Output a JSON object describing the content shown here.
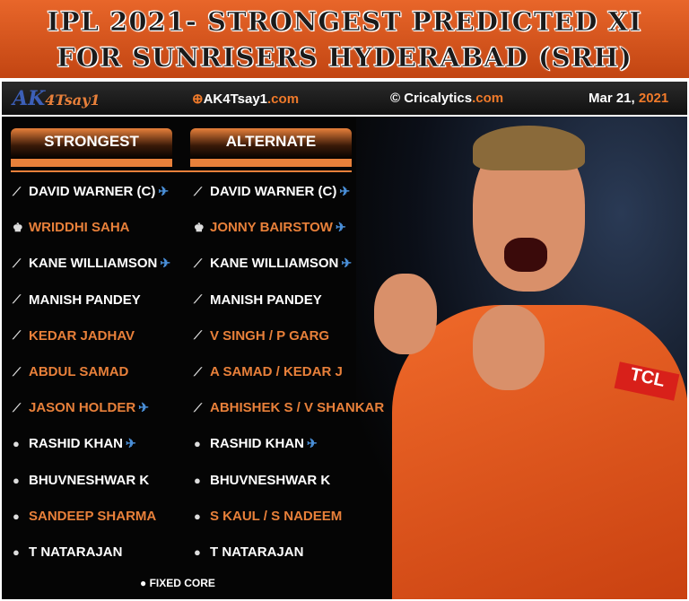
{
  "title": {
    "line1": "IPL 2021- STRONGEST PREDICTED XI",
    "line2": "FOR SUNRISERS HYDERABAD (SRH)"
  },
  "header": {
    "logo": "AK4Tsay1",
    "site1": "AK4Tsay1",
    "site1_tld": ".com",
    "site2": "© Cricalytics",
    "site2_tld": ".com",
    "date": "Mar 21, ",
    "year": "2021"
  },
  "buttons": {
    "strongest": "STRONGEST",
    "alternate": "ALTERNATE"
  },
  "colors": {
    "accent": "#e8803a",
    "overseas": "#4a8fd8"
  },
  "strongest": [
    {
      "name": "DAVID WARNER (C)",
      "icon": "bat-icon",
      "overseas": true,
      "orange": false
    },
    {
      "name": "WRIDDHI SAHA",
      "icon": "keeper-icon",
      "overseas": false,
      "orange": true
    },
    {
      "name": "KANE WILLIAMSON",
      "icon": "bat-icon",
      "overseas": true,
      "orange": false
    },
    {
      "name": "MANISH PANDEY",
      "icon": "bat-icon",
      "overseas": false,
      "orange": false
    },
    {
      "name": "KEDAR JADHAV",
      "icon": "bat-icon",
      "overseas": false,
      "orange": true
    },
    {
      "name": "ABDUL SAMAD",
      "icon": "bat-icon",
      "overseas": false,
      "orange": true
    },
    {
      "name": "JASON HOLDER",
      "icon": "bat-icon",
      "overseas": true,
      "orange": true
    },
    {
      "name": "RASHID KHAN",
      "icon": "ball-icon",
      "overseas": true,
      "orange": false
    },
    {
      "name": "BHUVNESHWAR K",
      "icon": "ball-icon",
      "overseas": false,
      "orange": false
    },
    {
      "name": "SANDEEP SHARMA",
      "icon": "ball-icon",
      "overseas": false,
      "orange": true
    },
    {
      "name": "T NATARAJAN",
      "icon": "ball-icon",
      "overseas": false,
      "orange": false
    }
  ],
  "alternate": [
    {
      "name": "DAVID WARNER (C)",
      "icon": "bat-icon",
      "overseas": true,
      "orange": false
    },
    {
      "name": "JONNY BAIRSTOW",
      "icon": "keeper-icon",
      "overseas": true,
      "orange": true
    },
    {
      "name": "KANE WILLIAMSON",
      "icon": "bat-icon",
      "overseas": true,
      "orange": false
    },
    {
      "name": "MANISH PANDEY",
      "icon": "bat-icon",
      "overseas": false,
      "orange": false
    },
    {
      "name": "V SINGH / P GARG",
      "icon": "bat-icon",
      "overseas": false,
      "orange": true
    },
    {
      "name": "A SAMAD / KEDAR J",
      "icon": "bat-icon",
      "overseas": false,
      "orange": true
    },
    {
      "name": "ABHISHEK S / V SHANKAR",
      "icon": "bat-icon",
      "overseas": false,
      "orange": true
    },
    {
      "name": "RASHID KHAN",
      "icon": "ball-icon",
      "overseas": true,
      "orange": false
    },
    {
      "name": "BHUVNESHWAR K",
      "icon": "ball-icon",
      "overseas": false,
      "orange": false
    },
    {
      "name": "S KAUL / S NADEEM",
      "icon": "ball-icon",
      "overseas": false,
      "orange": true
    },
    {
      "name": "T NATARAJAN",
      "icon": "ball-icon",
      "overseas": false,
      "orange": false
    }
  ],
  "legend": "FIXED CORE"
}
